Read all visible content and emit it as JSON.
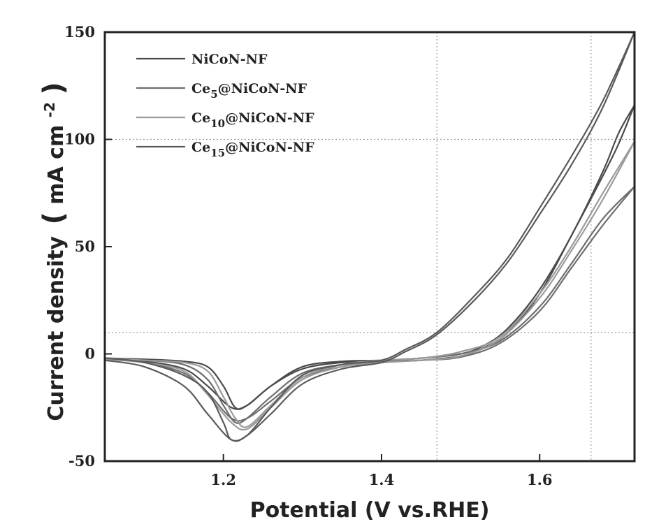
{
  "chart_data": {
    "type": "line",
    "title": "",
    "xlabel": "Potential (V vs.RHE)",
    "ylabel_main": "Current density",
    "ylabel_unit": "mA cm",
    "ylabel_exponent": "-2",
    "xlim": [
      1.05,
      1.72
    ],
    "ylim": [
      -50,
      150
    ],
    "xticks": [
      "1.2",
      "1.4",
      "1.6"
    ],
    "yticks": [
      "-50",
      "0",
      "50",
      "100",
      "150"
    ],
    "grid": false,
    "legend_position": "top-left",
    "ref_lines": {
      "x": [
        1.47,
        1.665
      ],
      "y": [
        10,
        100
      ]
    },
    "series": [
      {
        "name": "NiCoN-NF",
        "label_base": "NiCoN-NF",
        "label_sub": "",
        "label_rest": "",
        "color": "#4a4a4a",
        "forward": [
          [
            1.05,
            -2
          ],
          [
            1.1,
            -2.5
          ],
          [
            1.15,
            -3.5
          ],
          [
            1.18,
            -6
          ],
          [
            1.2,
            -15
          ],
          [
            1.215,
            -25
          ],
          [
            1.23,
            -24
          ],
          [
            1.26,
            -15
          ],
          [
            1.3,
            -6
          ],
          [
            1.35,
            -3.5
          ],
          [
            1.4,
            -3
          ],
          [
            1.45,
            -2
          ],
          [
            1.5,
            0
          ],
          [
            1.53,
            4
          ],
          [
            1.56,
            12
          ],
          [
            1.6,
            30
          ],
          [
            1.64,
            55
          ],
          [
            1.68,
            85
          ],
          [
            1.7,
            103
          ],
          [
            1.72,
            116
          ]
        ],
        "return": [
          [
            1.72,
            116
          ],
          [
            1.7,
            98
          ],
          [
            1.68,
            83
          ],
          [
            1.64,
            55
          ],
          [
            1.6,
            28
          ],
          [
            1.56,
            10
          ],
          [
            1.53,
            3
          ],
          [
            1.5,
            -1
          ],
          [
            1.45,
            -3
          ],
          [
            1.4,
            -3.5
          ],
          [
            1.35,
            -4
          ],
          [
            1.3,
            -7
          ],
          [
            1.26,
            -15
          ],
          [
            1.23,
            -24
          ],
          [
            1.21,
            -25
          ],
          [
            1.18,
            -15
          ],
          [
            1.15,
            -7
          ],
          [
            1.1,
            -3.5
          ],
          [
            1.05,
            -2.5
          ]
        ]
      },
      {
        "name": "Ce5@NiCoN-NF",
        "label_base": "Ce",
        "label_sub": "5",
        "label_rest": "@NiCoN-NF",
        "color": "#6e6e6e",
        "forward": [
          [
            1.05,
            -2
          ],
          [
            1.1,
            -3
          ],
          [
            1.15,
            -5
          ],
          [
            1.18,
            -12
          ],
          [
            1.2,
            -24
          ],
          [
            1.215,
            -32
          ],
          [
            1.23,
            -30
          ],
          [
            1.26,
            -20
          ],
          [
            1.3,
            -9
          ],
          [
            1.35,
            -5
          ],
          [
            1.4,
            -3.5
          ],
          [
            1.45,
            -2
          ],
          [
            1.5,
            0
          ],
          [
            1.55,
            6
          ],
          [
            1.6,
            22
          ],
          [
            1.64,
            42
          ],
          [
            1.68,
            63
          ],
          [
            1.72,
            78
          ]
        ],
        "return": [
          [
            1.72,
            78
          ],
          [
            1.68,
            60
          ],
          [
            1.64,
            40
          ],
          [
            1.6,
            20
          ],
          [
            1.55,
            5
          ],
          [
            1.5,
            -1.5
          ],
          [
            1.45,
            -3
          ],
          [
            1.4,
            -4
          ],
          [
            1.35,
            -6
          ],
          [
            1.3,
            -11
          ],
          [
            1.26,
            -22
          ],
          [
            1.23,
            -30
          ],
          [
            1.21,
            -30
          ],
          [
            1.18,
            -18
          ],
          [
            1.15,
            -9
          ],
          [
            1.1,
            -4
          ],
          [
            1.05,
            -2.5
          ]
        ]
      },
      {
        "name": "Ce10@NiCoN-NF",
        "label_base": "Ce",
        "label_sub": "10",
        "label_rest": "@NiCoN-NF",
        "color": "#9a9a9a",
        "forward": [
          [
            1.05,
            -2
          ],
          [
            1.1,
            -3
          ],
          [
            1.15,
            -4
          ],
          [
            1.18,
            -8
          ],
          [
            1.2,
            -20
          ],
          [
            1.215,
            -30
          ],
          [
            1.23,
            -34
          ],
          [
            1.26,
            -24
          ],
          [
            1.3,
            -11
          ],
          [
            1.35,
            -5
          ],
          [
            1.4,
            -3
          ],
          [
            1.45,
            -2
          ],
          [
            1.5,
            1
          ],
          [
            1.55,
            8
          ],
          [
            1.6,
            28
          ],
          [
            1.64,
            50
          ],
          [
            1.68,
            75
          ],
          [
            1.72,
            99
          ]
        ],
        "return": [
          [
            1.72,
            99
          ],
          [
            1.68,
            72
          ],
          [
            1.64,
            48
          ],
          [
            1.6,
            26
          ],
          [
            1.55,
            7
          ],
          [
            1.5,
            -1
          ],
          [
            1.45,
            -3
          ],
          [
            1.4,
            -4
          ],
          [
            1.35,
            -6
          ],
          [
            1.3,
            -12
          ],
          [
            1.26,
            -25
          ],
          [
            1.23,
            -35
          ],
          [
            1.21,
            -32
          ],
          [
            1.18,
            -19
          ],
          [
            1.15,
            -8
          ],
          [
            1.1,
            -4
          ],
          [
            1.05,
            -2.5
          ]
        ]
      },
      {
        "name": "Ce15@NiCoN-NF",
        "label_base": "Ce",
        "label_sub": "15",
        "label_rest": "@NiCoN-NF",
        "color": "#5a5a5a",
        "forward": [
          [
            1.05,
            -2
          ],
          [
            1.1,
            -4
          ],
          [
            1.15,
            -10
          ],
          [
            1.18,
            -18
          ],
          [
            1.2,
            -32
          ],
          [
            1.21,
            -40
          ],
          [
            1.23,
            -38
          ],
          [
            1.26,
            -25
          ],
          [
            1.3,
            -10
          ],
          [
            1.35,
            -5
          ],
          [
            1.4,
            -3
          ],
          [
            1.43,
            2
          ],
          [
            1.47,
            10
          ],
          [
            1.52,
            28
          ],
          [
            1.56,
            45
          ],
          [
            1.6,
            68
          ],
          [
            1.64,
            92
          ],
          [
            1.68,
            118
          ],
          [
            1.72,
            150
          ]
        ],
        "return": [
          [
            1.72,
            150
          ],
          [
            1.68,
            115
          ],
          [
            1.64,
            88
          ],
          [
            1.6,
            65
          ],
          [
            1.56,
            43
          ],
          [
            1.52,
            26
          ],
          [
            1.47,
            9
          ],
          [
            1.43,
            1
          ],
          [
            1.4,
            -4
          ],
          [
            1.35,
            -7
          ],
          [
            1.3,
            -14
          ],
          [
            1.26,
            -28
          ],
          [
            1.23,
            -38
          ],
          [
            1.21,
            -40
          ],
          [
            1.18,
            -28
          ],
          [
            1.15,
            -15
          ],
          [
            1.1,
            -6
          ],
          [
            1.05,
            -3
          ]
        ]
      }
    ]
  }
}
